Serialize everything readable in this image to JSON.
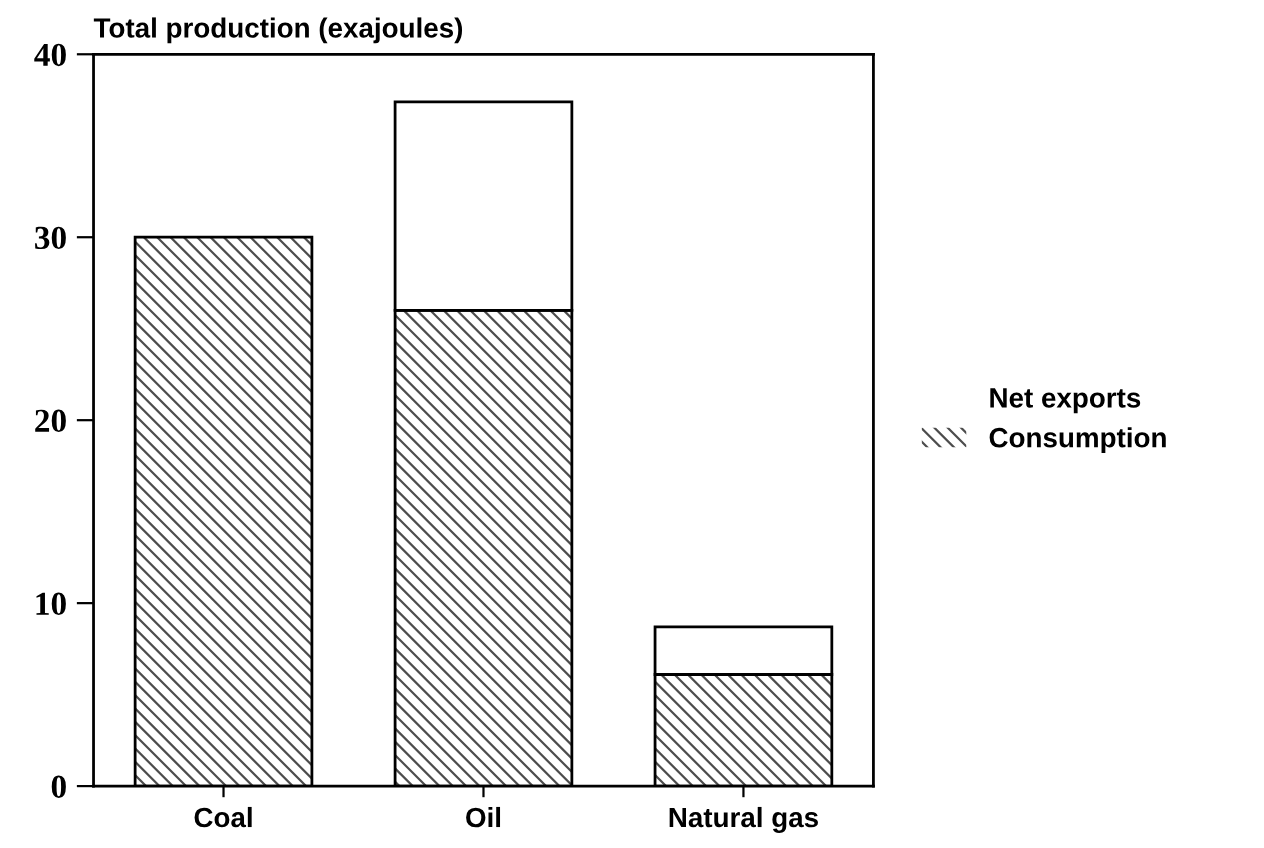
{
  "chart_data": {
    "type": "bar",
    "ylabel": "Total production (exajoules)",
    "categories": [
      "Coal",
      "Oil",
      "Natural gas"
    ],
    "stacked": true,
    "series": [
      {
        "name": "Consumption",
        "color": "#4d4d4d",
        "values": [
          30.0,
          26.0,
          6.1
        ]
      },
      {
        "name": "Net exports",
        "color": "#ffffff",
        "values": [
          0,
          11.4,
          2.6
        ]
      }
    ],
    "ylim": [
      0,
      40
    ],
    "yticks": [
      0,
      10,
      20,
      30,
      40
    ],
    "grid": false,
    "legend": "right"
  }
}
